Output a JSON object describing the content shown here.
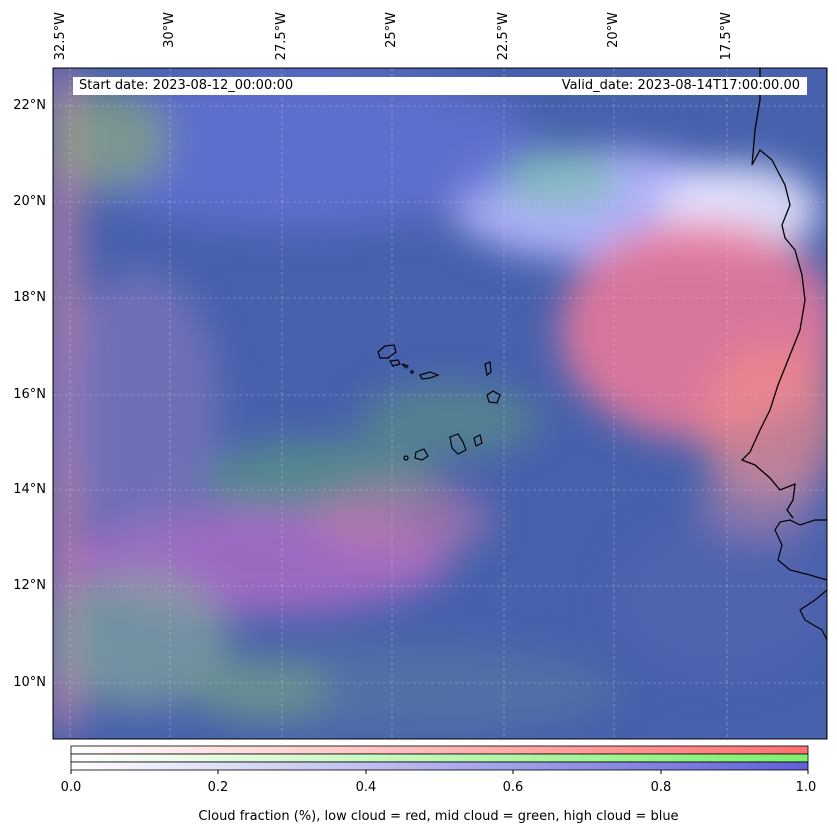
{
  "info": {
    "start_date": "Start date: 2023-08-12_00:00:00",
    "valid_date": "Valid_date: 2023-08-14T17:00:00.00"
  },
  "lon_labels": [
    "32.5°W",
    "30°W",
    "27.5°W",
    "25°W",
    "22.5°W",
    "20°W",
    "17.5°W"
  ],
  "lat_labels": [
    "22°N",
    "20°N",
    "18°N",
    "16°N",
    "14°N",
    "12°N",
    "10°N"
  ],
  "colorbar": {
    "ticks": [
      "0.0",
      "0.2",
      "0.4",
      "0.6",
      "0.8",
      "1.0"
    ],
    "label": "Cloud fraction (%), low cloud = red, mid cloud = green, high cloud = blue",
    "low_color": "#ff6f6f",
    "mid_color": "#7df06a",
    "high_color": "#6060d8"
  },
  "map": {
    "ocean_base_color": "#3f5ea8",
    "coastline_color": "#000000",
    "projection_note": "Cape Verde Islands and West African coast"
  }
}
